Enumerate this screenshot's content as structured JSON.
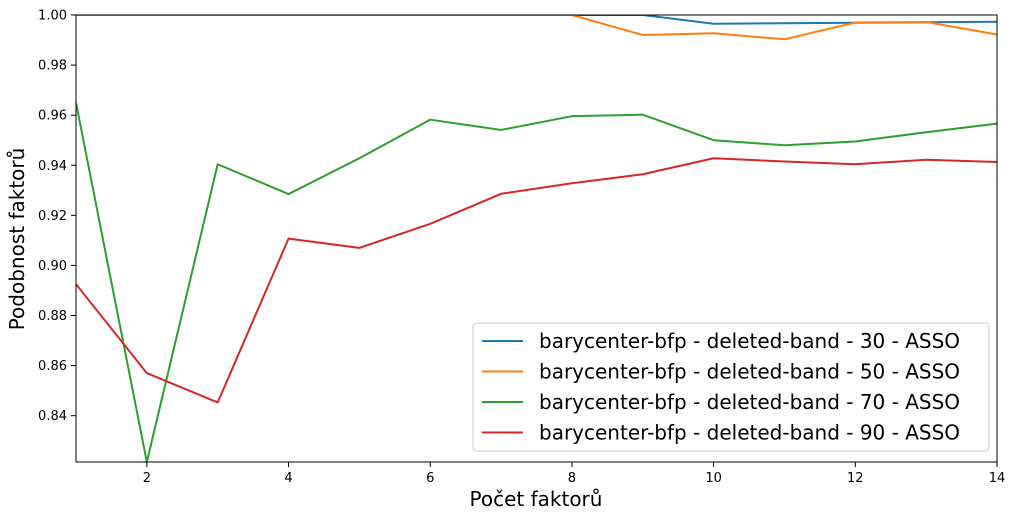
{
  "chart_data": {
    "type": "line",
    "title": "",
    "xlabel": "Počet faktorů",
    "ylabel": "Podobnost faktorů",
    "xlim": [
      1,
      14
    ],
    "ylim": [
      0.8215,
      1.0
    ],
    "x_ticks": [
      2,
      4,
      6,
      8,
      10,
      12,
      14
    ],
    "y_ticks": [
      0.84,
      0.86,
      0.88,
      0.9,
      0.92,
      0.94,
      0.96,
      0.98,
      1.0
    ],
    "grid": false,
    "legend_position": "bottom-right",
    "x": [
      1,
      2,
      3,
      4,
      5,
      6,
      7,
      8,
      9,
      10,
      11,
      12,
      13,
      14
    ],
    "series": [
      {
        "name": "barycenter-bfp - deleted-band - 30 - ASSO",
        "color": "#1f77b4",
        "values": [
          1.0,
          1.0,
          1.0,
          1.0,
          1.0,
          1.0,
          1.0,
          1.0,
          1.0,
          0.9965,
          0.9967,
          0.9969,
          0.9971,
          0.9973
        ]
      },
      {
        "name": "barycenter-bfp - deleted-band - 50 - ASSO",
        "color": "#ff7f0e",
        "values": [
          1.0,
          1.0,
          1.0,
          1.0,
          1.0,
          1.0,
          1.0,
          1.0,
          0.992,
          0.9927,
          0.9903,
          0.997,
          0.9972,
          0.9922
        ]
      },
      {
        "name": "barycenter-bfp - deleted-band - 70 - ASSO",
        "color": "#2ca02c",
        "values": [
          0.965,
          0.8215,
          0.9404,
          0.9285,
          0.9428,
          0.9582,
          0.9541,
          0.9596,
          0.9602,
          0.95,
          0.948,
          0.9495,
          0.9532,
          0.9566
        ]
      },
      {
        "name": "barycenter-bfp - deleted-band - 90 - ASSO",
        "color": "#d62728",
        "values": [
          0.8925,
          0.857,
          0.8453,
          0.9107,
          0.907,
          0.9166,
          0.9286,
          0.9328,
          0.9364,
          0.9428,
          0.9415,
          0.9404,
          0.9422,
          0.9413
        ]
      }
    ]
  }
}
